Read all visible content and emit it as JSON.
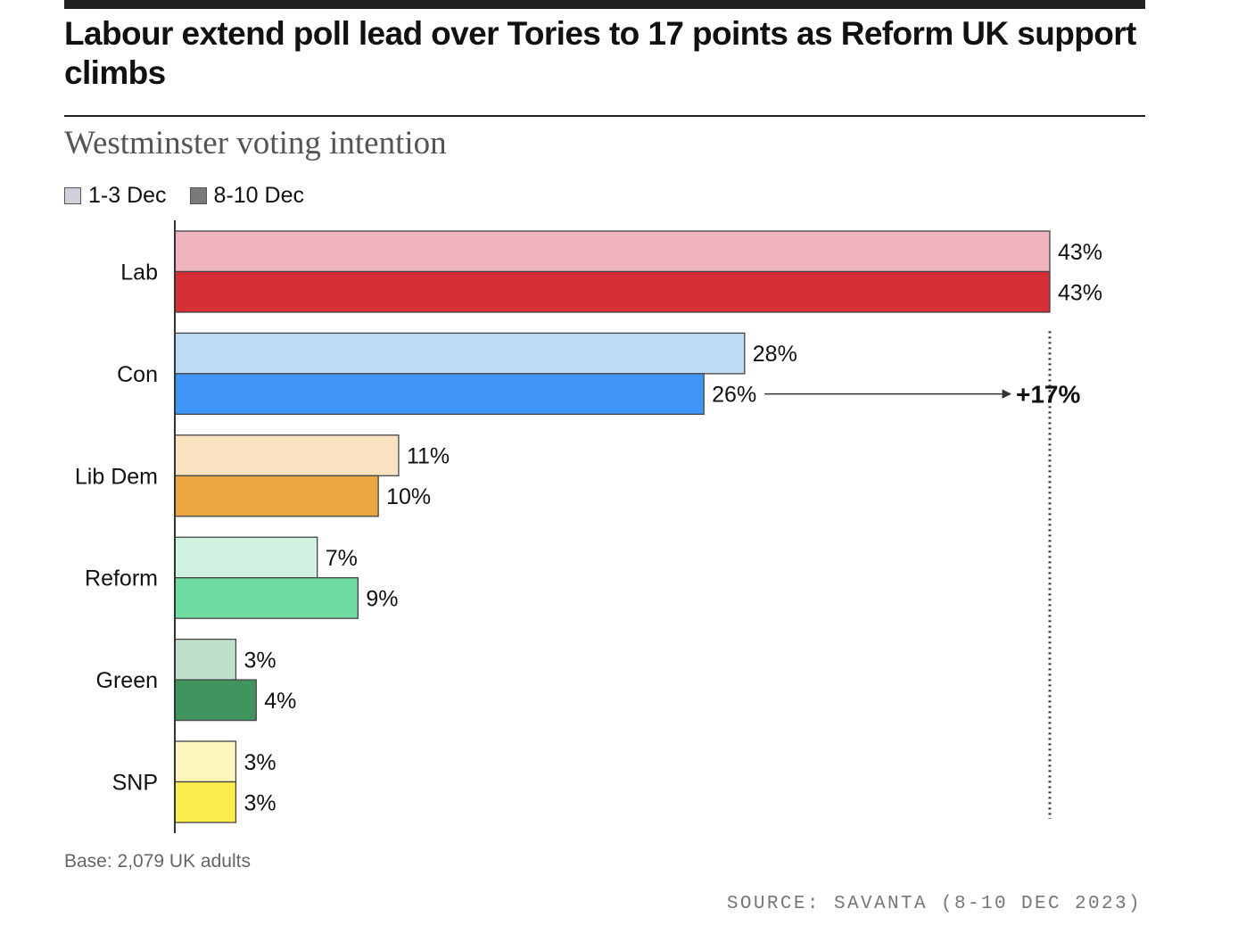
{
  "headline": "Labour extend poll lead over Tories to 17 points as Reform UK support climbs",
  "chart_data": {
    "type": "bar",
    "orientation": "horizontal",
    "title": "Westminster voting intention",
    "categories": [
      "Lab",
      "Con",
      "Lib Dem",
      "Reform",
      "Green",
      "SNP"
    ],
    "series": [
      {
        "name": "1-3 Dec",
        "values": [
          43,
          28,
          11,
          7,
          3,
          3
        ],
        "labels": [
          "43%",
          "28%",
          "11%",
          "7%",
          "3%",
          "3%"
        ],
        "colors": [
          "#efb3bf",
          "#bcdcf6",
          "#f8e2c0",
          "#d0f2e1",
          "#bee0cd",
          "#fdf7bb"
        ]
      },
      {
        "name": "8-10 Dec",
        "values": [
          43,
          26,
          10,
          9,
          4,
          3
        ],
        "labels": [
          "43%",
          "26%",
          "10%",
          "9%",
          "4%",
          "3%"
        ],
        "colors": [
          "#d72f36",
          "#4197f7",
          "#eaa640",
          "#6fdca2",
          "#40955f",
          "#fbed4b"
        ]
      }
    ],
    "legend": {
      "position": "top-left",
      "swatch_colors": [
        "#cfd1da",
        "#7a7a7a"
      ]
    },
    "annotation": {
      "label": "+17%",
      "from_category": "Con",
      "from_series": "8-10 Dec",
      "reference_value": 43,
      "style": "dotted reference line at Lab value with arrow from Con bar"
    },
    "xlim": [
      0,
      43
    ],
    "grid": false,
    "xlabel": "",
    "ylabel": ""
  },
  "base_note": "Base: 2,079 UK adults",
  "source_note": "SOURCE: SAVANTA (8-10 DEC 2023)"
}
